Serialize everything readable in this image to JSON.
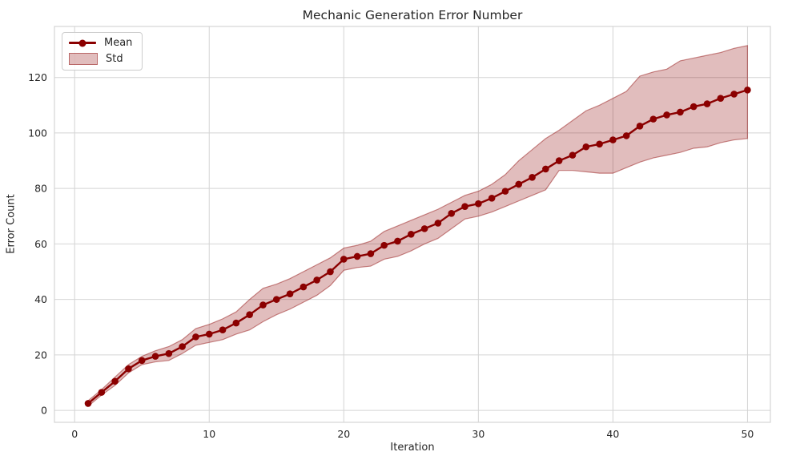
{
  "chart_data": {
    "type": "line",
    "title": "Mechanic Generation Error Number",
    "xlabel": "Iteration",
    "ylabel": "Error Count",
    "grid": true,
    "legend_position": "upper-left",
    "xlim": [
      -1.5,
      51.7
    ],
    "ylim": [
      -4.3,
      138.4
    ],
    "x_ticks": [
      0,
      10,
      20,
      30,
      40,
      50
    ],
    "y_ticks": [
      0,
      20,
      40,
      60,
      80,
      100,
      120
    ],
    "x": [
      1,
      2,
      3,
      4,
      5,
      6,
      7,
      8,
      9,
      10,
      11,
      12,
      13,
      14,
      15,
      16,
      17,
      18,
      19,
      20,
      21,
      22,
      23,
      24,
      25,
      26,
      27,
      28,
      29,
      30,
      31,
      32,
      33,
      34,
      35,
      36,
      37,
      38,
      39,
      40,
      41,
      42,
      43,
      44,
      45,
      46,
      47,
      48,
      49,
      50
    ],
    "series": [
      {
        "name": "Mean",
        "style": "line-with-markers",
        "color": "#8b0000",
        "values": [
          2.5,
          6.5,
          10.5,
          15,
          18,
          19.5,
          20.5,
          23,
          26.5,
          27.5,
          29,
          31.5,
          34.5,
          38,
          40,
          42,
          44.5,
          47,
          50,
          54.5,
          55.5,
          56.5,
          59.5,
          61,
          63.5,
          65.5,
          67.5,
          71,
          73.5,
          74.5,
          76.5,
          79,
          81.5,
          84,
          87,
          90,
          92,
          95,
          96,
          97.5,
          99,
          102.5,
          105,
          106.5,
          107.5,
          109.5,
          110.5,
          112.5,
          114,
          115.5
        ]
      },
      {
        "name": "Std",
        "style": "band",
        "fill_color": "#8b0000",
        "fill_opacity": 0.26,
        "edge_opacity": 0.45,
        "upper": [
          3.5,
          7.5,
          12,
          16.5,
          19.5,
          21.5,
          23,
          25.5,
          29.5,
          31,
          33,
          35.5,
          40,
          44,
          45.5,
          47.5,
          50,
          52.5,
          55,
          58.5,
          59.5,
          61,
          64.5,
          66.5,
          68.5,
          70.5,
          72.5,
          75,
          77.5,
          79,
          81.5,
          85,
          90,
          94,
          98,
          101,
          104.5,
          108,
          110,
          112.5,
          115,
          120.5,
          122,
          123,
          126,
          127,
          128,
          129,
          130.5,
          131.5
        ],
        "lower": [
          1.5,
          5.5,
          9,
          13.5,
          16.5,
          17.5,
          18,
          20.5,
          23.5,
          24.5,
          25.5,
          27.5,
          29,
          32,
          34.5,
          36.5,
          39,
          41.5,
          45,
          50.5,
          51.5,
          52,
          54.5,
          55.5,
          57.5,
          60,
          62,
          65.5,
          69,
          70,
          71.5,
          73.5,
          75.5,
          77.5,
          79.5,
          86.5,
          86.5,
          86,
          85.5,
          85.5,
          87.5,
          89.5,
          91,
          92,
          93,
          94.5,
          95,
          96.5,
          97.5,
          98
        ]
      }
    ],
    "axes_style": {
      "grid_color": "#d4d4d4",
      "frame_color": "#d4d4d4",
      "tick_label_color": "#262626",
      "background": "#ffffff"
    }
  }
}
